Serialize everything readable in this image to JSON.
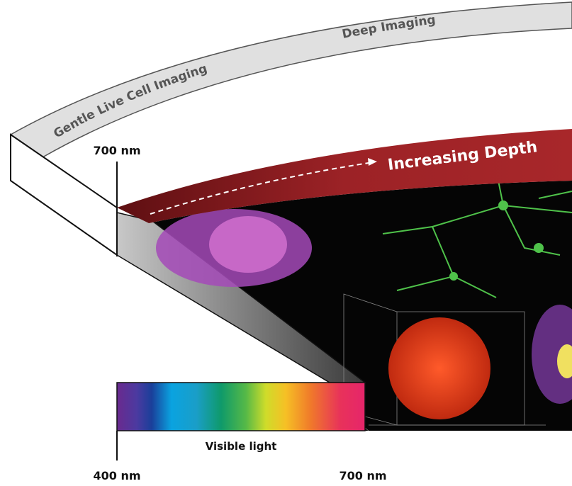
{
  "arc_labels": [
    "Gentle Live Cell Imaging",
    "Deep Imaging"
  ],
  "top_wavelength": "700 nm",
  "depth_label": "Increasing Depth",
  "spectrum": {
    "label": "Visible light",
    "start": "400 nm",
    "end": "700 nm"
  }
}
